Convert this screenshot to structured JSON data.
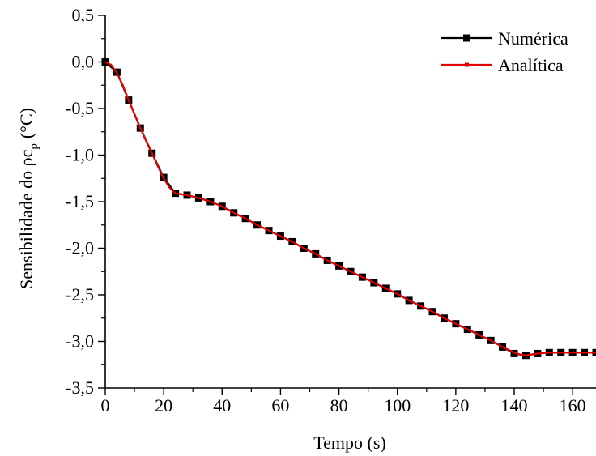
{
  "chart_data": {
    "type": "line",
    "title": "",
    "xlabel": "Tempo (s)",
    "ylabel": {
      "main": "Sensibilidade do ρc",
      "sub": "p",
      "unit": "(°C)"
    },
    "xlim": [
      0,
      168
    ],
    "ylim": [
      -3.5,
      0.5
    ],
    "xticks": [
      0,
      20,
      40,
      60,
      80,
      100,
      120,
      140,
      160
    ],
    "yticks": [
      0.5,
      0.0,
      -0.5,
      -1.0,
      -1.5,
      -2.0,
      -2.5,
      -3.0,
      -3.5
    ],
    "ytick_labels": [
      "0,5",
      "0,0",
      "-0,5",
      "-1,0",
      "-1,5",
      "-2,0",
      "-2,5",
      "-3,0",
      "-3,5"
    ],
    "legend_position": "top-right",
    "grid": false,
    "series": [
      {
        "name": "Numérica",
        "color": "#000000",
        "marker": "square",
        "x": [
          0,
          4,
          8,
          12,
          16,
          20,
          24,
          28,
          32,
          36,
          40,
          44,
          48,
          52,
          56,
          60,
          64,
          68,
          72,
          76,
          80,
          84,
          88,
          92,
          96,
          100,
          104,
          108,
          112,
          116,
          120,
          124,
          128,
          132,
          136,
          140,
          144,
          148,
          152,
          156,
          160,
          164,
          168
        ],
        "y": [
          0.0,
          -0.11,
          -0.41,
          -0.71,
          -0.98,
          -1.24,
          -1.41,
          -1.43,
          -1.46,
          -1.5,
          -1.55,
          -1.62,
          -1.68,
          -1.75,
          -1.81,
          -1.87,
          -1.93,
          -2.0,
          -2.06,
          -2.13,
          -2.19,
          -2.25,
          -2.31,
          -2.37,
          -2.43,
          -2.49,
          -2.56,
          -2.62,
          -2.68,
          -2.75,
          -2.81,
          -2.87,
          -2.93,
          -2.99,
          -3.06,
          -3.13,
          -3.15,
          -3.13,
          -3.12,
          -3.12,
          -3.12,
          -3.12,
          -3.12
        ]
      },
      {
        "name": "Analítica",
        "color": "#e00000",
        "marker": "small-square",
        "x": [
          0,
          2,
          4,
          6,
          8,
          10,
          12,
          14,
          16,
          18,
          20,
          22,
          24,
          28,
          32,
          36,
          40,
          44,
          48,
          52,
          56,
          60,
          64,
          68,
          72,
          76,
          80,
          84,
          88,
          92,
          96,
          100,
          104,
          108,
          112,
          116,
          120,
          124,
          128,
          132,
          136,
          140,
          142,
          144,
          146,
          148,
          152,
          156,
          160,
          164,
          168
        ],
        "y": [
          0.0,
          -0.03,
          -0.12,
          -0.25,
          -0.41,
          -0.56,
          -0.71,
          -0.85,
          -0.98,
          -1.12,
          -1.25,
          -1.35,
          -1.41,
          -1.43,
          -1.46,
          -1.5,
          -1.55,
          -1.62,
          -1.68,
          -1.75,
          -1.81,
          -1.87,
          -1.93,
          -2.0,
          -2.06,
          -2.13,
          -2.19,
          -2.25,
          -2.31,
          -2.37,
          -2.43,
          -2.49,
          -2.56,
          -2.62,
          -2.68,
          -2.75,
          -2.81,
          -2.87,
          -2.93,
          -2.99,
          -3.06,
          -3.12,
          -3.14,
          -3.15,
          -3.14,
          -3.13,
          -3.12,
          -3.12,
          -3.12,
          -3.12,
          -3.12
        ]
      }
    ]
  }
}
